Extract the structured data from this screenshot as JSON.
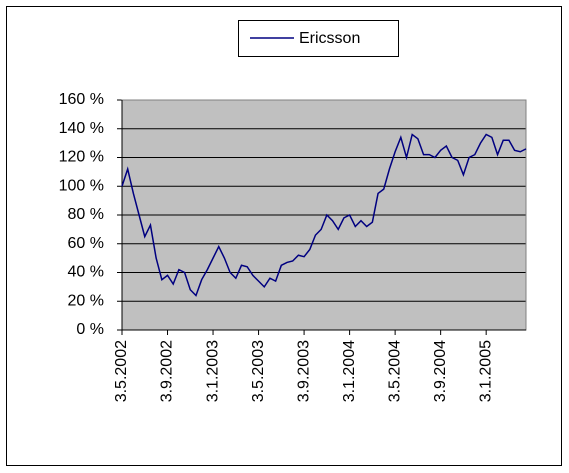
{
  "chart_data": {
    "type": "line",
    "categories": [
      "3.5.2002",
      null,
      null,
      null,
      null,
      null,
      null,
      null,
      "3.9.2002",
      null,
      null,
      null,
      null,
      null,
      null,
      null,
      "3.1.2003",
      null,
      null,
      null,
      null,
      null,
      null,
      null,
      "3.5.2003",
      null,
      null,
      null,
      null,
      null,
      null,
      null,
      "3.9.2003",
      null,
      null,
      null,
      null,
      null,
      null,
      null,
      "3.1.2004",
      null,
      null,
      null,
      null,
      null,
      null,
      null,
      "3.5.2004",
      null,
      null,
      null,
      null,
      null,
      null,
      null,
      "3.9.2004",
      null,
      null,
      null,
      null,
      null,
      null,
      null,
      "3.1.2005",
      null,
      null,
      null,
      null,
      null,
      null,
      null
    ],
    "series": [
      {
        "name": "Ericsson",
        "color": "#000080",
        "values": [
          100,
          112,
          95,
          80,
          65,
          73,
          50,
          35,
          38,
          32,
          42,
          40,
          28,
          24,
          35,
          42,
          50,
          58,
          50,
          40,
          36,
          45,
          44,
          38,
          34,
          30,
          36,
          34,
          45,
          47,
          48,
          52,
          51,
          56,
          66,
          70,
          80,
          76,
          70,
          78,
          80,
          72,
          76,
          72,
          75,
          95,
          98,
          112,
          124,
          134,
          120,
          136,
          133,
          122,
          122,
          120,
          125,
          128,
          120,
          118,
          108,
          120,
          122,
          130,
          136,
          134,
          122,
          132,
          132,
          125,
          124,
          126
        ]
      }
    ],
    "ylim": [
      0,
      160
    ],
    "yticks": [
      {
        "value": 0,
        "label": "0 %"
      },
      {
        "value": 20,
        "label": "20 %"
      },
      {
        "value": 40,
        "label": "40 %"
      },
      {
        "value": 60,
        "label": "60 %"
      },
      {
        "value": 80,
        "label": "80 %"
      },
      {
        "value": 100,
        "label": "100 %"
      },
      {
        "value": 120,
        "label": "120 %"
      },
      {
        "value": 140,
        "label": "140 %"
      },
      {
        "value": 160,
        "label": "160 %"
      }
    ],
    "grid": true,
    "legend": "top"
  }
}
